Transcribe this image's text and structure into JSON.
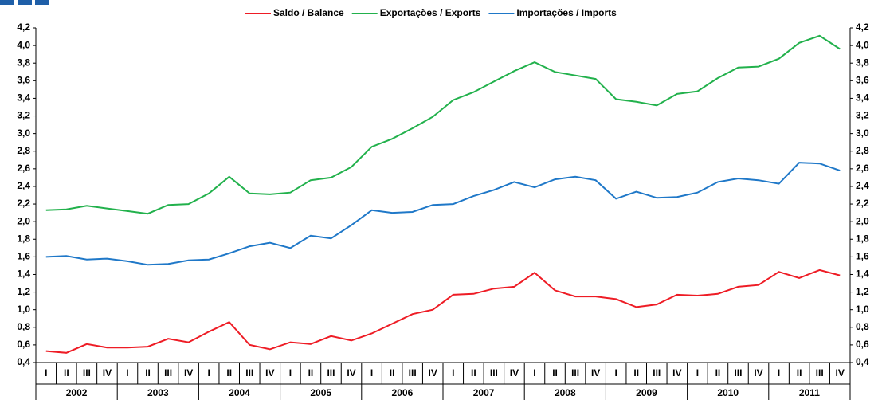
{
  "chart_data": {
    "type": "line",
    "categories": [
      "I",
      "II",
      "III",
      "IV",
      "I",
      "II",
      "III",
      "IV",
      "I",
      "II",
      "III",
      "IV",
      "I",
      "II",
      "III",
      "IV",
      "I",
      "II",
      "III",
      "IV",
      "I",
      "II",
      "III",
      "IV",
      "I",
      "II",
      "III",
      "IV",
      "I",
      "II",
      "III",
      "IV",
      "I",
      "II",
      "III",
      "IV",
      "I",
      "II",
      "III",
      "IV"
    ],
    "years": [
      "2002",
      "2003",
      "2004",
      "2005",
      "2006",
      "2007",
      "2008",
      "2009",
      "2010",
      "2011"
    ],
    "series": [
      {
        "name": "Saldo / Balance",
        "color": "#ee1c25",
        "values": [
          0.53,
          0.51,
          0.61,
          0.57,
          0.57,
          0.58,
          0.67,
          0.63,
          0.75,
          0.86,
          0.6,
          0.55,
          0.63,
          0.61,
          0.7,
          0.65,
          0.73,
          0.84,
          0.95,
          1.0,
          1.17,
          1.18,
          1.24,
          1.26,
          1.42,
          1.22,
          1.15,
          1.15,
          1.12,
          1.03,
          1.06,
          1.17,
          1.16,
          1.18,
          1.26,
          1.28,
          1.43,
          1.36,
          1.45,
          1.39
        ]
      },
      {
        "name": "Exportações / Exports",
        "color": "#22b14c",
        "values": [
          2.13,
          2.14,
          2.18,
          2.15,
          2.12,
          2.09,
          2.19,
          2.2,
          2.32,
          2.51,
          2.32,
          2.31,
          2.33,
          2.47,
          2.5,
          2.62,
          2.85,
          2.94,
          3.06,
          3.19,
          3.38,
          3.47,
          3.59,
          3.71,
          3.81,
          3.7,
          3.66,
          3.62,
          3.39,
          3.36,
          3.32,
          3.45,
          3.48,
          3.63,
          3.75,
          3.76,
          3.85,
          4.03,
          4.11,
          3.96
        ]
      },
      {
        "name": "Importações / Imports",
        "color": "#1f78c8",
        "values": [
          1.6,
          1.61,
          1.57,
          1.58,
          1.55,
          1.51,
          1.52,
          1.56,
          1.57,
          1.64,
          1.72,
          1.76,
          1.7,
          1.84,
          1.81,
          1.96,
          2.13,
          2.1,
          2.11,
          2.19,
          2.2,
          2.29,
          2.36,
          2.45,
          2.39,
          2.48,
          2.51,
          2.47,
          2.26,
          2.34,
          2.27,
          2.28,
          2.33,
          2.45,
          2.49,
          2.47,
          2.43,
          2.67,
          2.66,
          2.58
        ]
      }
    ],
    "ylim": [
      0.4,
      4.2
    ],
    "yticks": [
      {
        "value": 0.4,
        "label": "0,4"
      },
      {
        "value": 0.6,
        "label": "0,6"
      },
      {
        "value": 0.8,
        "label": "0,8"
      },
      {
        "value": 1.0,
        "label": "1,0"
      },
      {
        "value": 1.2,
        "label": "1,2"
      },
      {
        "value": 1.4,
        "label": "1,4"
      },
      {
        "value": 1.6,
        "label": "1,6"
      },
      {
        "value": 1.8,
        "label": "1,8"
      },
      {
        "value": 2.0,
        "label": "2,0"
      },
      {
        "value": 2.2,
        "label": "2,2"
      },
      {
        "value": 2.4,
        "label": "2,4"
      },
      {
        "value": 2.6,
        "label": "2,6"
      },
      {
        "value": 2.8,
        "label": "2,8"
      },
      {
        "value": 3.0,
        "label": "3,0"
      },
      {
        "value": 3.2,
        "label": "3,2"
      },
      {
        "value": 3.4,
        "label": "3,4"
      },
      {
        "value": 3.6,
        "label": "3,6"
      },
      {
        "value": 3.8,
        "label": "3,8"
      },
      {
        "value": 4.0,
        "label": "4,0"
      },
      {
        "value": 4.2,
        "label": "4,2"
      }
    ],
    "grid": false
  }
}
